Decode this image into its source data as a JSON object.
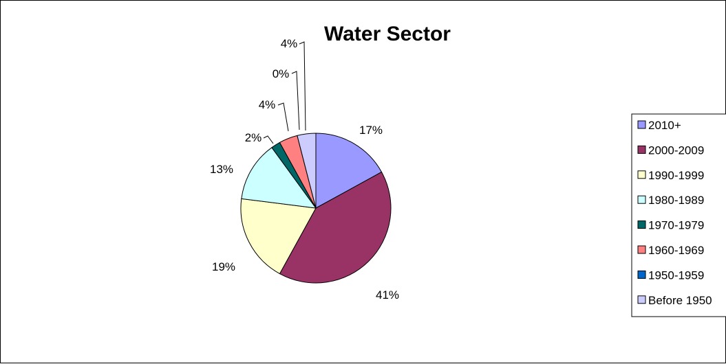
{
  "chart_data": {
    "type": "pie",
    "title": "Water Sector",
    "categories": [
      "2010+",
      "2000-2009",
      "1990-1999",
      "1980-1989",
      "1970-1979",
      "1960-1969",
      "1950-1959",
      "Before 1950"
    ],
    "values": [
      17,
      41,
      19,
      13,
      2,
      4,
      0,
      4
    ],
    "labels": [
      "17%",
      "41%",
      "19%",
      "13%",
      "2%",
      "4%",
      "0%",
      "4%"
    ],
    "colors": [
      "#9999ff",
      "#993366",
      "#ffffcc",
      "#ccffff",
      "#006666",
      "#ff8080",
      "#0066cc",
      "#ccccff"
    ],
    "legend": "right",
    "start": "12 o'clock",
    "direction": "clockwise"
  }
}
